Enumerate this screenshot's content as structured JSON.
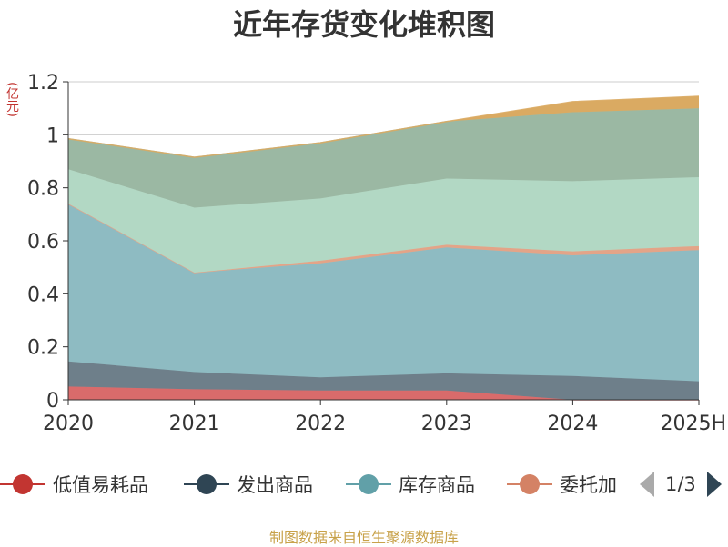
{
  "title": "近年存货变化堆积图",
  "unit_label": "(亿元)",
  "source_note": "制图数据来自恒生聚源数据库",
  "legend_page": "1/3",
  "legend_visible": [
    {
      "name": "低值易耗品",
      "color": "#c23531"
    },
    {
      "name": "发出商品",
      "color": "#2f4554"
    },
    {
      "name": "库存商品",
      "color": "#61a0a8"
    },
    {
      "name": "委托加",
      "color": "#d48265"
    }
  ],
  "chart_data": {
    "type": "area",
    "stacked": true,
    "categories": [
      "2020",
      "2021",
      "2022",
      "2023",
      "2024",
      "2025H"
    ],
    "ylim": [
      0,
      1.2
    ],
    "yticks": [
      0,
      0.2,
      0.4,
      0.6,
      0.8,
      1,
      1.2
    ],
    "ytick_labels": [
      "0",
      "0.2",
      "0.4",
      "0.6",
      "0.8",
      "1",
      "1.2"
    ],
    "grid": true,
    "series": [
      {
        "name": "低值易耗品",
        "color": "#d96b6b",
        "values": [
          0.05,
          0.04,
          0.035,
          0.035,
          0.0,
          0.0
        ]
      },
      {
        "name": "发出商品",
        "color": "#6e7f8a",
        "values": [
          0.095,
          0.065,
          0.05,
          0.065,
          0.09,
          0.07
        ]
      },
      {
        "name": "库存商品",
        "color": "#8ebbc2",
        "values": [
          0.595,
          0.375,
          0.43,
          0.475,
          0.455,
          0.495
        ]
      },
      {
        "name": "委托加",
        "color": "#e3a488",
        "values": [
          0.0,
          0.0,
          0.01,
          0.01,
          0.015,
          0.015
        ]
      },
      {
        "color": "#b2d8c4",
        "values": [
          0.13,
          0.245,
          0.235,
          0.25,
          0.265,
          0.26
        ]
      },
      {
        "color": "#9bb8a3",
        "values": [
          0.115,
          0.19,
          0.21,
          0.215,
          0.26,
          0.26
        ]
      },
      {
        "color": "#daaa62",
        "values": [
          0.0,
          0.0,
          0.0,
          0.0,
          0.04,
          0.045
        ]
      }
    ]
  }
}
